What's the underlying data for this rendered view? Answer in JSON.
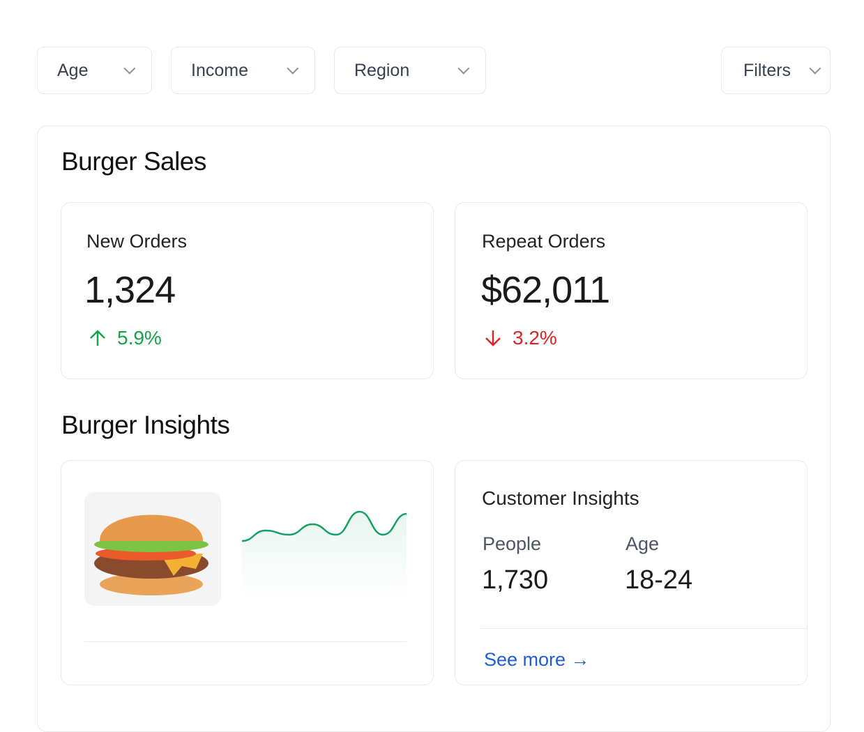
{
  "filters": {
    "age": "Age",
    "income": "Income",
    "region": "Region",
    "more": "Filters"
  },
  "sales": {
    "title": "Burger Sales",
    "new_orders": {
      "label": "New Orders",
      "value": "1,324",
      "delta": "5.9%",
      "direction": "up",
      "color": "#16a34a"
    },
    "repeat_orders": {
      "label": "Repeat Orders",
      "value": "$62,011",
      "delta": "3.2%",
      "direction": "down",
      "color": "#dc2626"
    }
  },
  "insights": {
    "title": "Burger Insights",
    "sparkline": {
      "values": [
        0.2,
        0.45,
        0.35,
        0.6,
        0.35,
        0.9,
        0.35,
        0.85
      ],
      "color": "#16a062"
    },
    "customer": {
      "title": "Customer Insights",
      "people_label": "People",
      "people_value": "1,730",
      "age_label": "Age",
      "age_value": "18-24",
      "link": "See more →",
      "link_color": "#1d5fd1"
    }
  }
}
